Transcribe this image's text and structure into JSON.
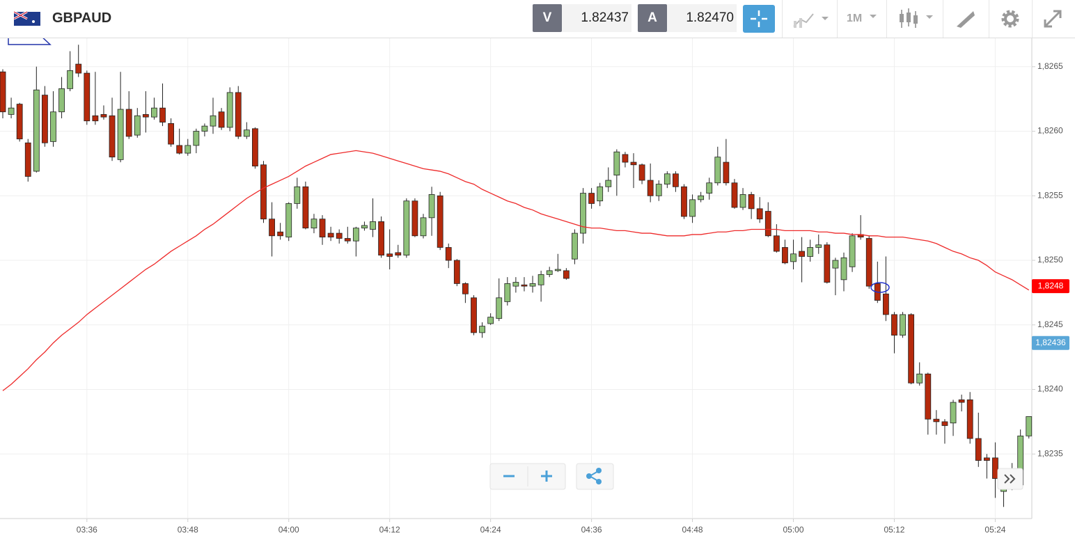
{
  "toolbar": {
    "symbol": "GBPAUD",
    "sell_label": "V",
    "sell_price": "1.82437",
    "buy_label": "A",
    "buy_price": "1.82470",
    "timeframe": "1M"
  },
  "chart_data": {
    "type": "candlestick",
    "categories": [
      null,
      null,
      null,
      null,
      null,
      null,
      null,
      null,
      null,
      null,
      "03:36",
      null,
      null,
      null,
      null,
      null,
      null,
      null,
      null,
      null,
      null,
      null,
      "03:48",
      null,
      null,
      null,
      null,
      null,
      null,
      null,
      null,
      null,
      null,
      null,
      "04:00",
      null,
      null,
      null,
      null,
      null,
      null,
      null,
      null,
      null,
      null,
      null,
      "04:12",
      null,
      null,
      null,
      null,
      null,
      null,
      null,
      null,
      null,
      null,
      null,
      "04:24",
      null,
      null,
      null,
      null,
      null,
      null,
      null,
      null,
      null,
      null,
      null,
      "04:36",
      null,
      null,
      null,
      null,
      null,
      null,
      null,
      null,
      null,
      null,
      null,
      "04:48",
      null,
      null,
      null,
      null,
      null,
      null,
      null,
      null,
      null,
      null,
      null,
      "05:00",
      null,
      null,
      null,
      null,
      null,
      null,
      null,
      null,
      null,
      null,
      null,
      "05:12",
      null,
      null,
      null,
      null,
      null,
      null,
      null,
      null,
      null,
      null,
      null,
      "05:24",
      null,
      null,
      null,
      null
    ],
    "open": [
      1.82646,
      1.82613,
      1.82621,
      1.82591,
      1.82569,
      1.82628,
      1.82592,
      1.82615,
      1.82633,
      1.82652,
      1.82645,
      1.82612,
      1.82613,
      1.82612,
      1.82578,
      1.82617,
      1.82597,
      1.82613,
      1.82611,
      1.82618,
      1.82606,
      1.82589,
      1.82583,
      1.82589,
      1.826,
      1.82604,
      1.82615,
      1.82603,
      1.8263,
      1.82596,
      1.82602,
      1.82574,
      1.82532,
      1.82522,
      1.82518,
      1.82544,
      1.82557,
      1.82525,
      1.82532,
      1.82521,
      1.82521,
      1.82517,
      1.82515,
      1.82525,
      1.82524,
      1.8253,
      1.82505,
      1.82506,
      1.82504,
      1.82546,
      1.82519,
      1.82533,
      1.8255,
      1.8251,
      1.825,
      1.82482,
      1.82471,
      1.82444,
      1.82451,
      1.82455,
      1.82468,
      1.8248,
      1.82481,
      1.8248,
      1.82481,
      1.82489,
      1.82492,
      1.82492,
      1.82501,
      1.82521,
      1.82552,
      1.82546,
      1.82557,
      1.82566,
      1.82582,
      1.82576,
      1.82574,
      1.82562,
      1.8255,
      1.82559,
      1.82567,
      1.82557,
      1.82534,
      1.82547,
      1.82552,
      1.8256,
      1.82576,
      1.8256,
      1.82541,
      1.82551,
      1.8254,
      1.82538,
      1.82519,
      1.8251,
      1.82499,
      1.82507,
      1.82503,
      1.8251,
      1.82512,
      1.82494,
      1.82485,
      1.82495,
      1.8252,
      1.82517,
      1.82482,
      1.82474,
      1.82458,
      1.82442,
      1.82458,
      1.82405,
      1.82412,
      1.82377,
      1.82375,
      1.82374,
      1.82392,
      1.82392,
      1.82362,
      1.82347,
      1.82347,
      1.82321,
      1.82323,
      1.82326,
      1.82364
    ],
    "high": [
      1.82648,
      1.82626,
      1.82622,
      1.82594,
      1.8265,
      1.82635,
      1.82631,
      1.82642,
      1.82662,
      1.82667,
      1.82647,
      1.82646,
      1.8262,
      1.82626,
      1.82646,
      1.82631,
      1.82618,
      1.82631,
      1.82626,
      1.82637,
      1.8261,
      1.82602,
      1.82594,
      1.82602,
      1.82606,
      1.82626,
      1.82618,
      1.82634,
      1.82635,
      1.82607,
      1.82603,
      1.82577,
      1.82545,
      1.82529,
      1.82545,
      1.82564,
      1.82561,
      1.82536,
      1.82535,
      1.82526,
      1.82524,
      1.82526,
      1.82526,
      1.8253,
      1.82548,
      1.82534,
      1.82524,
      1.82512,
      1.82548,
      1.82548,
      1.82536,
      1.82557,
      1.82553,
      1.82513,
      1.82501,
      1.82483,
      1.82473,
      1.82452,
      1.82459,
      1.82486,
      1.82487,
      1.82487,
      1.82487,
      1.82488,
      1.82492,
      1.82495,
      1.82505,
      1.82494,
      1.82524,
      1.82556,
      1.82556,
      1.8256,
      1.82572,
      1.82586,
      1.82584,
      1.82583,
      1.82575,
      1.82575,
      1.82562,
      1.82569,
      1.82569,
      1.82559,
      1.82551,
      1.82553,
      1.82564,
      1.82588,
      1.82594,
      1.82563,
      1.82556,
      1.82553,
      1.82549,
      1.82545,
      1.82528,
      1.82516,
      1.82516,
      1.82518,
      1.82516,
      1.8252,
      1.82514,
      1.82502,
      1.82506,
      1.82521,
      1.82535,
      1.82519,
      1.82499,
      1.82503,
      1.8246,
      1.8246,
      1.82459,
      1.82421,
      1.82413,
      1.82384,
      1.82377,
      1.82392,
      1.82396,
      1.82398,
      1.82382,
      1.8235,
      1.82359,
      1.82331,
      1.82343,
      1.82369,
      1.82379
    ],
    "low": [
      1.8261,
      1.8261,
      1.82592,
      1.82561,
      1.82568,
      1.82588,
      1.82588,
      1.8261,
      1.82631,
      1.82642,
      1.82605,
      1.82605,
      1.82609,
      1.82577,
      1.82576,
      1.82594,
      1.82595,
      1.82599,
      1.82609,
      1.82604,
      1.82588,
      1.82582,
      1.82581,
      1.82583,
      1.82596,
      1.82598,
      1.82601,
      1.826,
      1.82594,
      1.82594,
      1.82571,
      1.82529,
      1.82503,
      1.82516,
      1.82515,
      1.8254,
      1.82524,
      1.82521,
      1.82512,
      1.82515,
      1.82513,
      1.82513,
      1.82503,
      1.82523,
      1.82518,
      1.82502,
      1.82493,
      1.82502,
      1.82502,
      1.82518,
      1.82517,
      1.82519,
      1.82508,
      1.82494,
      1.8248,
      1.82467,
      1.82442,
      1.8244,
      1.8245,
      1.82453,
      1.82465,
      1.82475,
      1.82476,
      1.82475,
      1.82468,
      1.82487,
      1.82491,
      1.82485,
      1.82497,
      1.82513,
      1.8254,
      1.82542,
      1.82553,
      1.8255,
      1.82572,
      1.82556,
      1.82559,
      1.82545,
      1.82546,
      1.82556,
      1.82553,
      1.82532,
      1.82529,
      1.82545,
      1.82547,
      1.82558,
      1.82558,
      1.8254,
      1.82539,
      1.82532,
      1.82529,
      1.82518,
      1.82506,
      1.82497,
      1.82493,
      1.82483,
      1.82499,
      1.82505,
      1.82482,
      1.82473,
      1.82476,
      1.82491,
      1.82516,
      1.82478,
      1.82467,
      1.82453,
      1.82428,
      1.8244,
      1.82404,
      1.82403,
      1.82365,
      1.82365,
      1.82358,
      1.82364,
      1.82383,
      1.82358,
      1.8234,
      1.82331,
      1.82316,
      1.82309,
      1.82322,
      1.82324,
      1.82362
    ],
    "close": [
      1.82615,
      1.82618,
      1.82594,
      1.82565,
      1.82632,
      1.82591,
      1.82615,
      1.82633,
      1.82647,
      1.82645,
      1.82608,
      1.82608,
      1.82611,
      1.8258,
      1.82617,
      1.82596,
      1.82612,
      1.82611,
      1.82618,
      1.82607,
      1.8259,
      1.82583,
      1.82589,
      1.826,
      1.82604,
      1.82612,
      1.82603,
      1.8263,
      1.82596,
      1.82601,
      1.82573,
      1.82532,
      1.82519,
      1.82519,
      1.82544,
      1.82557,
      1.82525,
      1.82532,
      1.82518,
      1.82518,
      1.82517,
      1.82515,
      1.82525,
      1.82527,
      1.8253,
      1.82504,
      1.82503,
      1.82504,
      1.82546,
      1.82519,
      1.82533,
      1.82551,
      1.8251,
      1.825,
      1.82482,
      1.82474,
      1.82444,
      1.82449,
      1.82456,
      1.82471,
      1.82482,
      1.82483,
      1.8248,
      1.82482,
      1.82489,
      1.82492,
      1.82493,
      1.82486,
      1.82521,
      1.82552,
      1.82544,
      1.82557,
      1.82562,
      1.82584,
      1.82576,
      1.82574,
      1.82562,
      1.8255,
      1.82559,
      1.82567,
      1.82557,
      1.82534,
      1.82547,
      1.8255,
      1.8256,
      1.8258,
      1.8256,
      1.82541,
      1.82551,
      1.8254,
      1.82532,
      1.82519,
      1.82507,
      1.82498,
      1.82505,
      1.82503,
      1.8251,
      1.82512,
      1.82483,
      1.825,
      1.82502,
      1.82519,
      1.82518,
      1.8248,
      1.82469,
      1.82458,
      1.82442,
      1.82458,
      1.82405,
      1.82412,
      1.82377,
      1.82375,
      1.82372,
      1.8239,
      1.8239,
      1.82362,
      1.82345,
      1.82345,
      1.82331,
      1.82324,
      1.82326,
      1.82364,
      1.82379
    ],
    "moving_average": {
      "color": "#ee2a2a",
      "values": [
        1.82399,
        1.82404,
        1.8241,
        1.82416,
        1.82423,
        1.82429,
        1.82436,
        1.82442,
        1.82447,
        1.82452,
        1.82458,
        1.82463,
        1.82468,
        1.82473,
        1.82478,
        1.82483,
        1.82488,
        1.82493,
        1.82497,
        1.82502,
        1.82507,
        1.82511,
        1.82515,
        1.82519,
        1.82524,
        1.82528,
        1.82533,
        1.82538,
        1.82543,
        1.82548,
        1.82552,
        1.82556,
        1.82559,
        1.82562,
        1.82565,
        1.82569,
        1.82573,
        1.82576,
        1.82579,
        1.82582,
        1.82583,
        1.82584,
        1.82585,
        1.82584,
        1.82583,
        1.82581,
        1.82579,
        1.82577,
        1.82575,
        1.82573,
        1.82571,
        1.8257,
        1.82569,
        1.82567,
        1.82564,
        1.82561,
        1.82559,
        1.82555,
        1.82552,
        1.82549,
        1.82546,
        1.82544,
        1.82541,
        1.82539,
        1.82536,
        1.82534,
        1.82532,
        1.8253,
        1.82528,
        1.82526,
        1.82525,
        1.82525,
        1.82524,
        1.82523,
        1.82523,
        1.82522,
        1.82521,
        1.82521,
        1.8252,
        1.82519,
        1.82519,
        1.82519,
        1.8252,
        1.8252,
        1.82521,
        1.82522,
        1.82522,
        1.82523,
        1.82523,
        1.82524,
        1.82524,
        1.82524,
        1.82524,
        1.82523,
        1.82523,
        1.82523,
        1.82523,
        1.82522,
        1.82522,
        1.82521,
        1.82521,
        1.8252,
        1.8252,
        1.82519,
        1.82519,
        1.82518,
        1.82518,
        1.82518,
        1.82517,
        1.82516,
        1.82515,
        1.82513,
        1.8251,
        1.82507,
        1.82505,
        1.82502,
        1.825,
        1.82496,
        1.82491,
        1.82488,
        1.82485,
        1.82481,
        1.82477
      ]
    },
    "up_color": "#8fc17a",
    "down_color": "#b52a0c",
    "ylim": [
      1.823,
      1.82672
    ],
    "yticks": [
      {
        "value": 1.8235,
        "label": "1,8235"
      },
      {
        "value": 1.824,
        "label": "1,8240"
      },
      {
        "value": 1.8245,
        "label": "1,8245"
      },
      {
        "value": 1.825,
        "label": "1,8250"
      },
      {
        "value": 1.8255,
        "label": "1,8255"
      },
      {
        "value": 1.826,
        "label": "1,8260"
      },
      {
        "value": 1.8265,
        "label": "1,8265"
      }
    ],
    "price_labels": [
      {
        "value": 1.8248,
        "label": "1,8248",
        "color": "#ff0000"
      },
      {
        "value": 1.82436,
        "label": "1,82436",
        "color": "#5aa7d8"
      }
    ],
    "grid": true
  }
}
